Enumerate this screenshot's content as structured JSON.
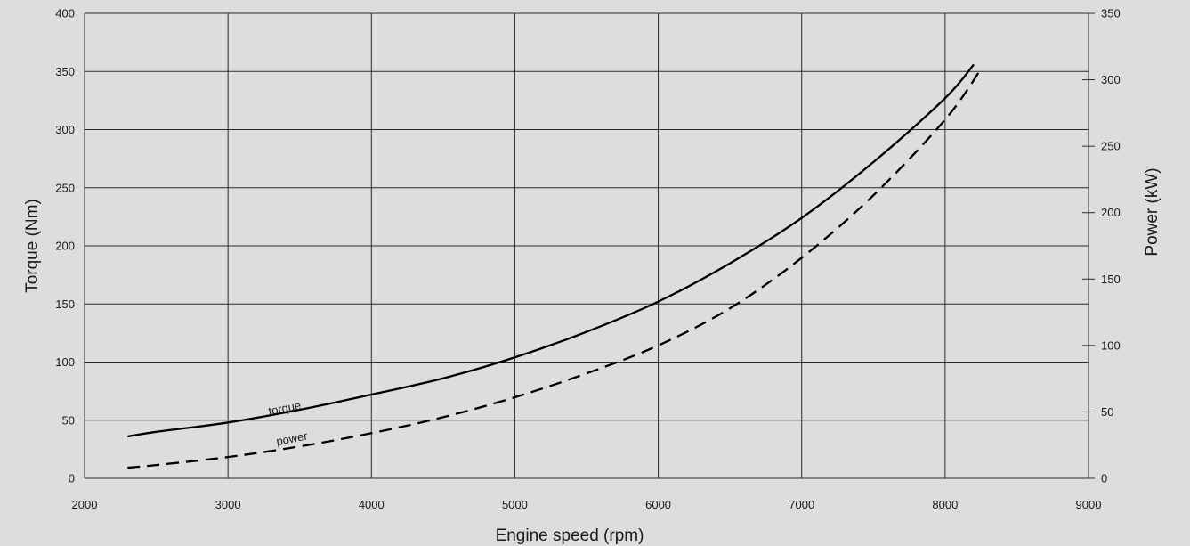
{
  "chart_data": {
    "type": "line",
    "title": "",
    "xlabel": "Engine speed (rpm)",
    "ylabel_left": "Torque (Nm)",
    "ylabel_right": "Power (kW)",
    "xlim": [
      2000,
      9000
    ],
    "ylim_left": [
      0,
      400
    ],
    "ylim_right": [
      0,
      350
    ],
    "x_ticks": [
      "2000",
      "3000",
      "4000",
      "5000",
      "6000",
      "7000",
      "8000",
      "9000"
    ],
    "y_left_ticks": [
      "0",
      "50",
      "100",
      "150",
      "200",
      "250",
      "300",
      "350",
      "400"
    ],
    "y_right_ticks": [
      "0",
      "50",
      "100",
      "150",
      "200",
      "250",
      "300",
      "350"
    ],
    "grid": true,
    "series": [
      {
        "name": "torque",
        "axis": "left",
        "style": "solid",
        "color": "#000000",
        "x": [
          2300,
          2500,
          3000,
          3500,
          4000,
          4500,
          5000,
          5500,
          6000,
          6500,
          7000,
          7500,
          8000,
          8200
        ],
        "y": [
          36,
          40,
          48,
          59,
          72,
          86,
          104,
          126,
          152,
          185,
          224,
          272,
          327,
          356
        ]
      },
      {
        "name": "power",
        "axis": "right",
        "style": "dashed",
        "color": "#000000",
        "x": [
          2300,
          2500,
          3000,
          3500,
          4000,
          4500,
          5000,
          5500,
          6000,
          6500,
          7000,
          7500,
          8000,
          8250
        ],
        "y": [
          8,
          10,
          16,
          24,
          34,
          46,
          61,
          79,
          100,
          128,
          166,
          213,
          270,
          308
        ]
      }
    ],
    "annotations": [
      {
        "text": "torque",
        "series": "torque",
        "x": 3400,
        "y_data": 57
      },
      {
        "text": "power",
        "series": "power",
        "x": 3450,
        "y_data": 27
      }
    ]
  }
}
